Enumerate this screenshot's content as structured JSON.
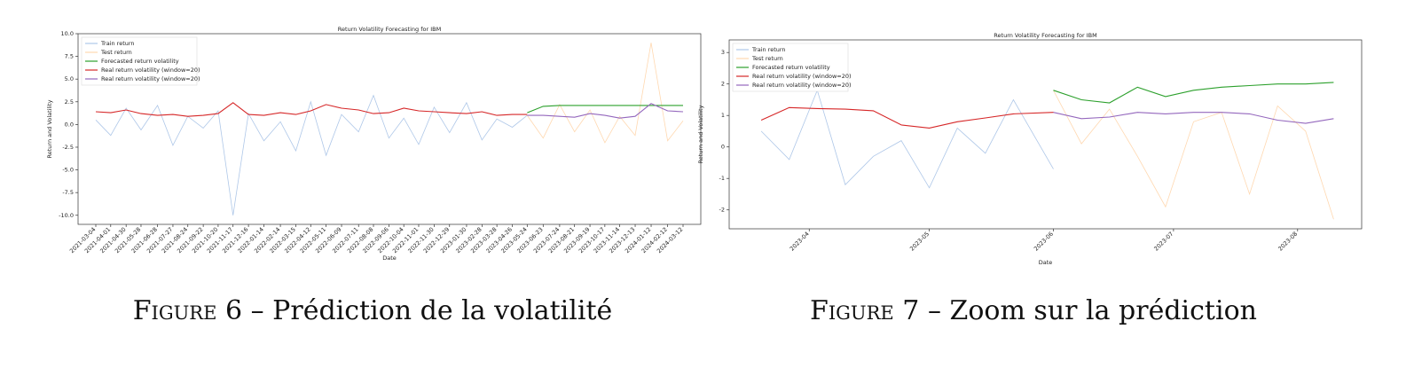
{
  "chart_data": [
    {
      "type": "line",
      "title": "Return Volatility Forecasting for IBM",
      "x_label": "Date",
      "y_label": "Return and Volatility",
      "x": [
        "2021-03-04",
        "2021-04-01",
        "2021-04-30",
        "2021-05-28",
        "2021-06-28",
        "2021-07-27",
        "2021-08-24",
        "2021-09-22",
        "2021-10-20",
        "2021-11-17",
        "2021-12-16",
        "2022-01-14",
        "2022-02-14",
        "2022-03-15",
        "2022-04-12",
        "2022-05-11",
        "2022-06-09",
        "2022-07-11",
        "2022-08-08",
        "2022-09-06",
        "2022-10-04",
        "2022-11-01",
        "2022-11-30",
        "2022-12-29",
        "2023-01-30",
        "2023-02-28",
        "2023-03-28",
        "2023-04-26",
        "2023-05-24",
        "2023-06-23",
        "2023-07-24",
        "2023-08-21",
        "2023-09-19",
        "2023-10-17",
        "2023-11-14",
        "2023-12-13",
        "2024-01-12",
        "2024-02-12",
        "2024-03-12"
      ],
      "series": [
        {
          "name": "Train return",
          "color": "#aec7e8",
          "values": [
            0.5,
            -1.2,
            1.8,
            -0.6,
            2.1,
            -2.3,
            0.9,
            -0.4,
            1.5,
            -10.0,
            1.2,
            -1.8,
            0.3,
            -2.9,
            2.5,
            -3.4,
            1.1,
            -0.8,
            3.2,
            -1.5,
            0.7,
            -2.2,
            1.9,
            -0.9,
            2.4,
            -1.7,
            0.6,
            -0.3,
            1.0,
            null,
            null,
            null,
            null,
            null,
            null,
            null,
            null,
            null,
            null
          ]
        },
        {
          "name": "Test return",
          "color": "#ffd8b0",
          "values": [
            null,
            null,
            null,
            null,
            null,
            null,
            null,
            null,
            null,
            null,
            null,
            null,
            null,
            null,
            null,
            null,
            null,
            null,
            null,
            null,
            null,
            null,
            null,
            null,
            null,
            null,
            null,
            null,
            1.0,
            -1.5,
            2.2,
            -0.8,
            1.6,
            -2.0,
            0.9,
            -1.2,
            9.0,
            -1.8,
            0.4
          ]
        },
        {
          "name": "Forecasted return volatility",
          "color": "#2ca02c",
          "values": [
            null,
            null,
            null,
            null,
            null,
            null,
            null,
            null,
            null,
            null,
            null,
            null,
            null,
            null,
            null,
            null,
            null,
            null,
            null,
            null,
            null,
            null,
            null,
            null,
            null,
            null,
            null,
            null,
            1.3,
            2.0,
            2.1,
            2.1,
            2.1,
            2.1,
            2.1,
            2.1,
            2.1,
            2.1,
            2.1
          ]
        },
        {
          "name": "Real return volatility (window=20)",
          "color": "#d62728",
          "values": [
            1.4,
            1.3,
            1.6,
            1.2,
            1.0,
            1.1,
            0.9,
            1.0,
            1.2,
            2.4,
            1.1,
            1.0,
            1.3,
            1.1,
            1.5,
            2.2,
            1.8,
            1.6,
            1.2,
            1.3,
            1.8,
            1.5,
            1.4,
            1.3,
            1.2,
            1.4,
            1.0,
            1.1,
            1.1,
            null,
            null,
            null,
            null,
            null,
            null,
            null,
            null,
            null,
            null
          ]
        },
        {
          "name": "Real return volatility (window=20)",
          "color": "#9467bd",
          "values": [
            null,
            null,
            null,
            null,
            null,
            null,
            null,
            null,
            null,
            null,
            null,
            null,
            null,
            null,
            null,
            null,
            null,
            null,
            null,
            null,
            null,
            null,
            null,
            null,
            null,
            null,
            null,
            null,
            1.0,
            1.0,
            0.9,
            0.8,
            1.2,
            1.0,
            0.7,
            0.9,
            2.3,
            1.5,
            1.4
          ]
        }
      ],
      "xlim": [
        "2021-03-04",
        "2024-03-12"
      ],
      "xticks": [
        "2021-03-04",
        "2021-04-01",
        "2021-04-30",
        "2021-05-28",
        "2021-06-28",
        "2021-07-27",
        "2021-08-24",
        "2021-09-22",
        "2021-10-20",
        "2021-11-17",
        "2021-12-16",
        "2022-01-14",
        "2022-02-14",
        "2022-03-15",
        "2022-04-12",
        "2022-05-11",
        "2022-06-09",
        "2022-07-11",
        "2022-08-08",
        "2022-09-06",
        "2022-10-04",
        "2022-11-01",
        "2022-11-30",
        "2022-12-29",
        "2023-01-30",
        "2023-02-28",
        "2023-03-28",
        "2023-04-26",
        "2023-05-24",
        "2023-06-23",
        "2023-07-24",
        "2023-08-21",
        "2023-09-19",
        "2023-10-17",
        "2023-11-14",
        "2023-12-13",
        "2024-01-12",
        "2024-02-12",
        "2024-03-12"
      ],
      "ylim": [
        -11,
        10
      ],
      "yticks": [
        {
          "value": -10,
          "label": "-10.0"
        },
        {
          "value": -7.5,
          "label": "-7.5"
        },
        {
          "value": -5,
          "label": "-5.0"
        },
        {
          "value": -2.5,
          "label": "-2.5"
        },
        {
          "value": 0,
          "label": "0.0"
        },
        {
          "value": 2.5,
          "label": "2.5"
        },
        {
          "value": 5,
          "label": "5.0"
        },
        {
          "value": 7.5,
          "label": "7.5"
        },
        {
          "value": 10,
          "label": "10.0"
        }
      ],
      "legend": "upper-left"
    },
    {
      "type": "line",
      "title": "Return Volatility Forecasting for IBM",
      "x_label": "Date",
      "y_label": "Return and Volatility",
      "x": [
        "2023-03-20",
        "2023-03-27",
        "2023-04-03",
        "2023-04-10",
        "2023-04-17",
        "2023-04-24",
        "2023-05-01",
        "2023-05-08",
        "2023-05-15",
        "2023-05-22",
        "2023-06-01",
        "2023-06-08",
        "2023-06-15",
        "2023-06-22",
        "2023-06-29",
        "2023-07-06",
        "2023-07-13",
        "2023-07-20",
        "2023-07-27",
        "2023-08-03",
        "2023-08-10"
      ],
      "series": [
        {
          "name": "Train return",
          "color": "#aec7e8",
          "values": [
            0.5,
            -0.4,
            1.8,
            -1.2,
            -0.3,
            0.2,
            -1.3,
            0.6,
            -0.2,
            1.5,
            -0.7,
            null,
            null,
            null,
            null,
            null,
            null,
            null,
            null,
            null,
            null
          ]
        },
        {
          "name": "Test return",
          "color": "#ffd8b0",
          "values": [
            null,
            null,
            null,
            null,
            null,
            null,
            null,
            null,
            null,
            null,
            1.8,
            0.1,
            1.2,
            -0.3,
            -1.9,
            0.8,
            1.1,
            -1.5,
            1.3,
            0.5,
            -2.3
          ]
        },
        {
          "name": "Forecasted return volatility",
          "color": "#2ca02c",
          "values": [
            null,
            null,
            null,
            null,
            null,
            null,
            null,
            null,
            null,
            null,
            1.8,
            1.5,
            1.4,
            1.9,
            1.6,
            1.8,
            1.9,
            1.95,
            2.0,
            2.0,
            2.05
          ]
        },
        {
          "name": "Real return volatility (window=20)",
          "color": "#d62728",
          "values": [
            0.85,
            1.25,
            1.22,
            1.2,
            1.15,
            0.7,
            0.6,
            0.8,
            0.92,
            1.05,
            1.1,
            null,
            null,
            null,
            null,
            null,
            null,
            null,
            null,
            null,
            null
          ]
        },
        {
          "name": "Real return volatility (window=20)",
          "color": "#9467bd",
          "values": [
            null,
            null,
            null,
            null,
            null,
            null,
            null,
            null,
            null,
            null,
            1.1,
            0.9,
            0.95,
            1.1,
            1.05,
            1.1,
            1.1,
            1.05,
            0.85,
            0.75,
            0.9
          ]
        }
      ],
      "xlim": [
        "2023-03-12",
        "2023-08-17"
      ],
      "xticks": [
        "2023-04",
        "2023-05",
        "2023-06",
        "2023-07",
        "2023-08"
      ],
      "ylim": [
        -2.6,
        3.4
      ],
      "yticks": [
        -2,
        -1,
        0,
        1,
        2,
        3
      ],
      "legend": "upper-left"
    }
  ],
  "captions": [
    {
      "label": "Figure 6",
      "text": "– Prédiction de la volatilité"
    },
    {
      "label": "Figure 7",
      "text": "– Zoom sur la prédiction"
    }
  ]
}
